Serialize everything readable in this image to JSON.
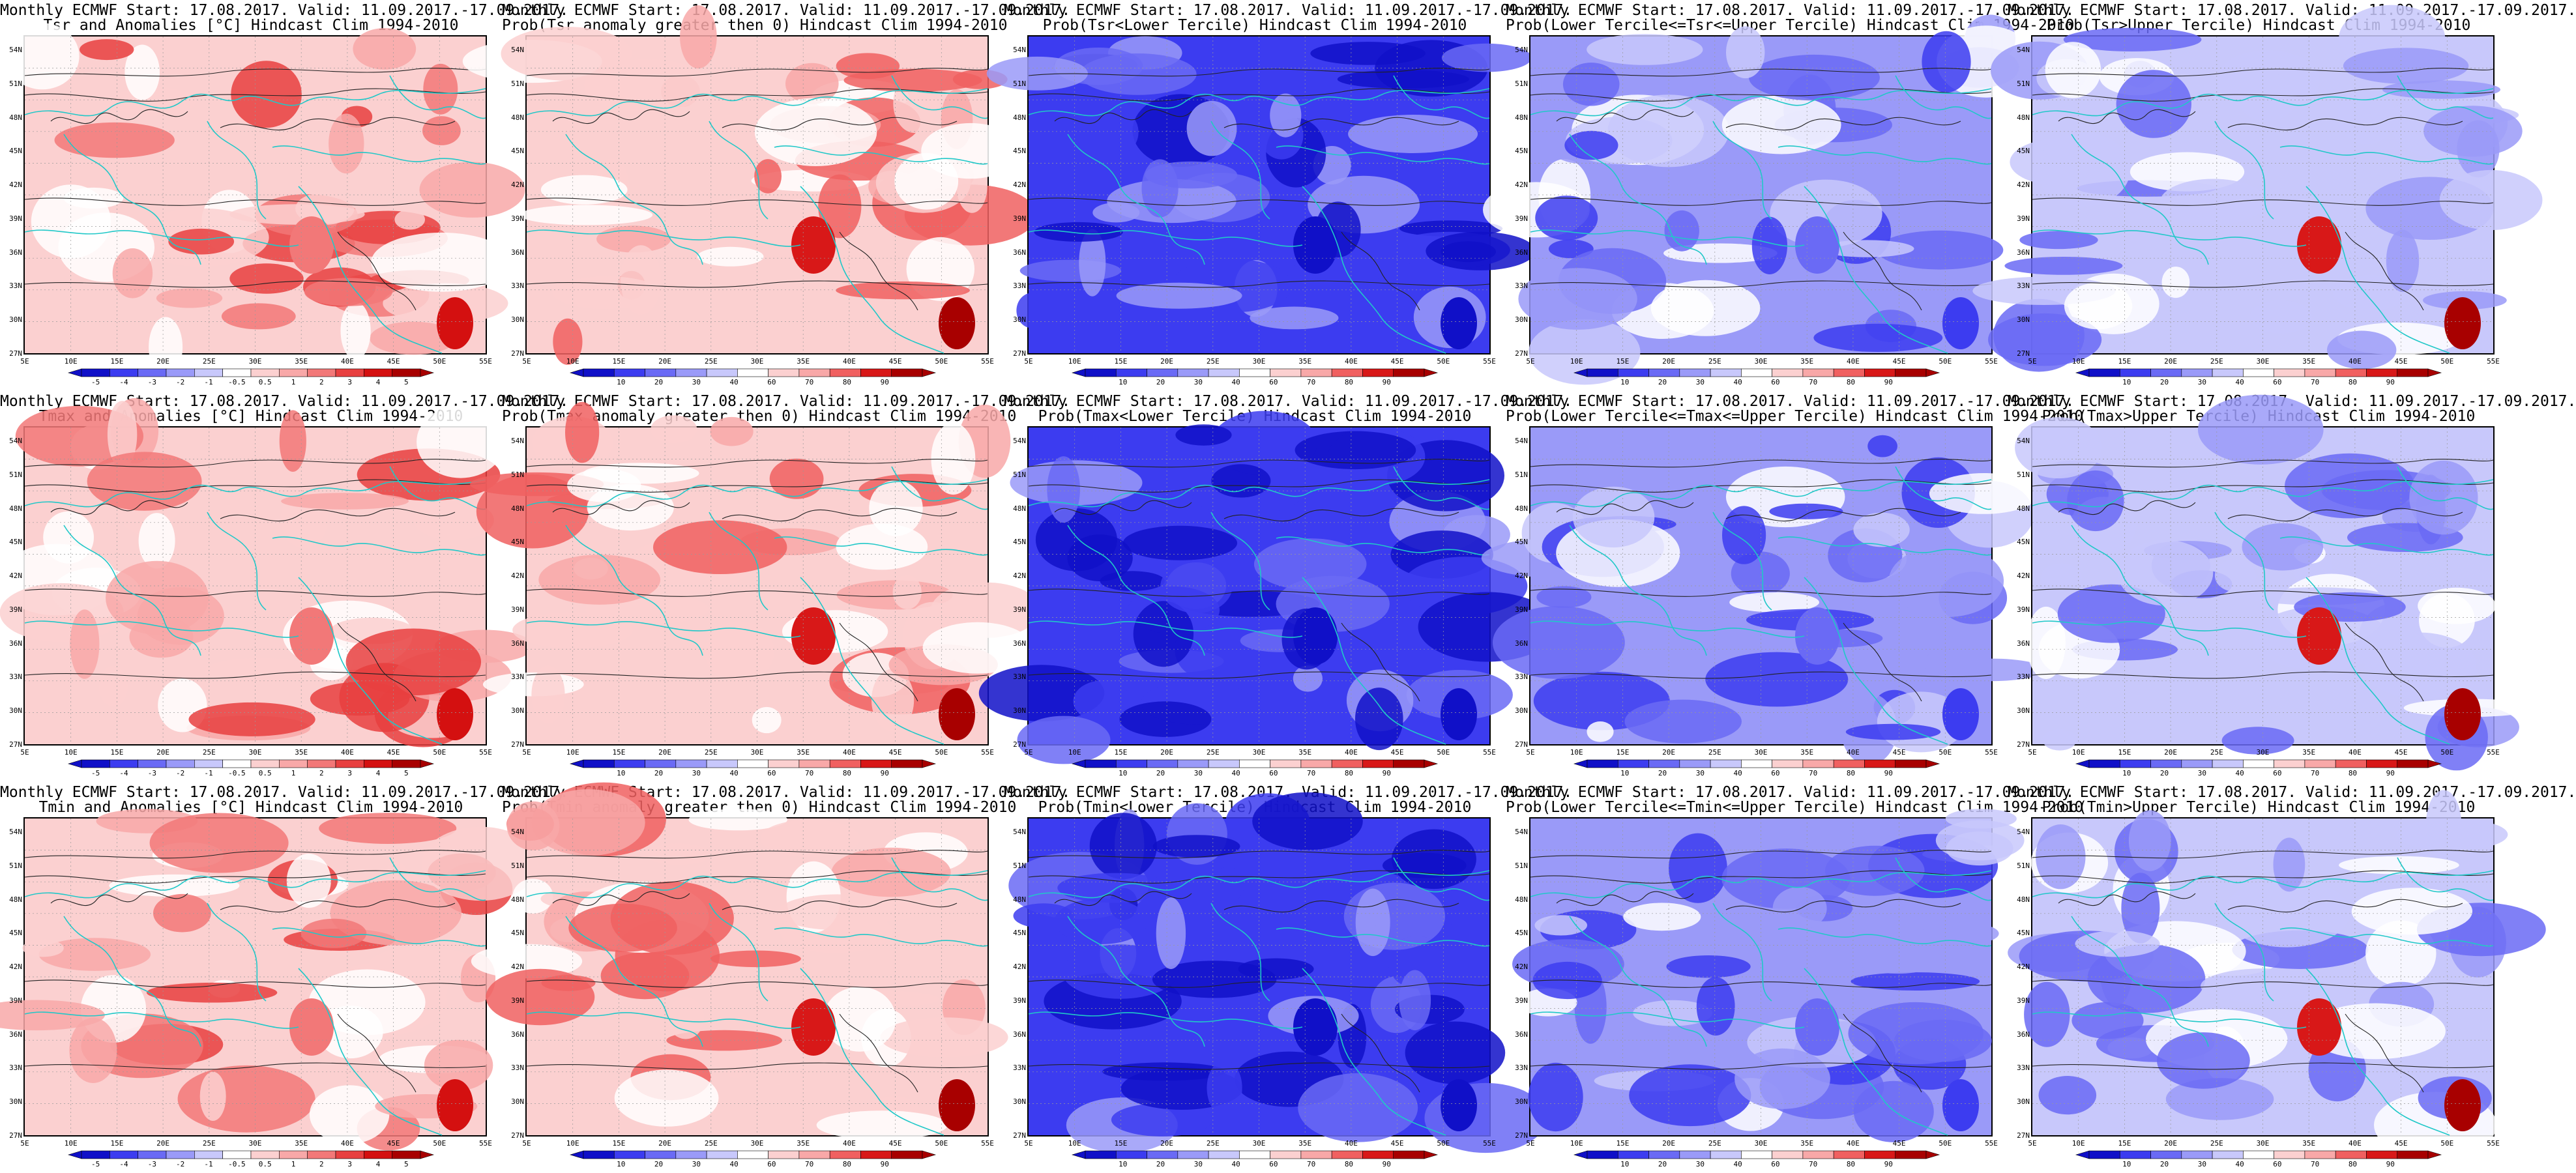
{
  "lat_labels": [
    "54N",
    "51N",
    "48N",
    "45N",
    "42N",
    "39N",
    "36N",
    "33N",
    "30N",
    "27N"
  ],
  "lon_labels": [
    "5E",
    "10E",
    "15E",
    "20E",
    "25E",
    "30E",
    "35E",
    "40E",
    "45E",
    "50E",
    "55E"
  ],
  "palettes": {
    "anomaly": [
      "#1010c8",
      "#3c3cf0",
      "#6a6af5",
      "#9a9af8",
      "#c8c8fb",
      "#ffffff",
      "#fbd0d0",
      "#f8a8a8",
      "#f27878",
      "#e84040",
      "#d41010",
      "#a80000"
    ],
    "prob_warm": [
      "#1010c8",
      "#3c3cf0",
      "#6a6af5",
      "#9a9af8",
      "#c8c8fb",
      "#ffffff",
      "#fbd0d0",
      "#f8a8a8",
      "#f06060",
      "#d81818",
      "#a80000"
    ],
    "prob_cold": [
      "#1010c8",
      "#3c3cf0",
      "#6a6af5",
      "#9a9af8",
      "#c8c8fb",
      "#ffffff",
      "#fbd0d0",
      "#f8a8a8",
      "#f06060",
      "#d81818",
      "#a80000"
    ]
  },
  "colorbars": {
    "anomaly_labels": [
      "-5",
      "-4",
      "-3",
      "-2",
      "-1",
      "-0.5",
      "0.5",
      "1",
      "2",
      "3",
      "4",
      "5"
    ],
    "prob_labels": [
      "10",
      "20",
      "30",
      "40",
      "60",
      "70",
      "80",
      "90"
    ]
  },
  "panels": [
    {
      "id": "tsr-anom",
      "line1": "Monthly ECMWF Start: 17.08.2017. Valid: 11.09.2017.-17.09.2017.",
      "line2": "Tsr and Anomalies [°C] Hindcast Clim 1994-2010",
      "field": "anomaly",
      "variant": "warm",
      "seed": 11
    },
    {
      "id": "tsr-prob-gt0",
      "line1": "Monthly ECMWF Start: 17.08.2017. Valid: 11.09.2017.-17.09.2017.",
      "line2": "Prob(Tsr anomaly greater then 0) Hindcast Clim 1994-2010",
      "field": "prob",
      "variant": "warm",
      "seed": 12
    },
    {
      "id": "tsr-prob-lower",
      "line1": "Monthly ECMWF Start: 17.08.2017. Valid: 11.09.2017.-17.09.2017.",
      "line2": "Prob(Tsr<Lower Tercile) Hindcast Clim 1994-2010",
      "field": "prob",
      "variant": "cold",
      "seed": 13
    },
    {
      "id": "tsr-prob-middle",
      "line1": "Monthly ECMWF Start: 17.08.2017. Valid: 11.09.2017.-17.09.2017.",
      "line2": "Prob(Lower Tercile<=Tsr<=Upper Tercile) Hindcast Clim 1994-2010",
      "field": "prob",
      "variant": "mid",
      "seed": 14
    },
    {
      "id": "tsr-prob-upper",
      "line1": "Monthly ECMWF Start: 17.08.2017. Valid: 11.09.2017.-17.09.2017.",
      "line2": "Prob(Tsr>Upper Tercile) Hindcast Clim 1994-2010",
      "field": "prob",
      "variant": "upper",
      "seed": 15
    },
    {
      "id": "tmax-anom",
      "line1": "Monthly ECMWF Start: 17.08.2017. Valid: 11.09.2017.-17.09.2017.",
      "line2": "Tmax and Anomalies [°C] Hindcast Clim 1994-2010",
      "field": "anomaly",
      "variant": "warm",
      "seed": 21
    },
    {
      "id": "tmax-prob-gt0",
      "line1": "Monthly ECMWF Start: 17.08.2017. Valid: 11.09.2017.-17.09.2017.",
      "line2": "Prob(Tmax anomaly greater then 0) Hindcast Clim 1994-2010",
      "field": "prob",
      "variant": "warm",
      "seed": 22
    },
    {
      "id": "tmax-prob-lower",
      "line1": "Monthly ECMWF Start: 17.08.2017. Valid: 11.09.2017.-17.09.2017.",
      "line2": "Prob(Tmax<Lower Tercile) Hindcast Clim 1994-2010",
      "field": "prob",
      "variant": "cold",
      "seed": 23
    },
    {
      "id": "tmax-prob-middle",
      "line1": "Monthly ECMWF Start: 17.08.2017. Valid: 11.09.2017.-17.09.2017.",
      "line2": "Prob(Lower Tercile<=Tmax<=Upper Tercile) Hindcast Clim 1994-2010",
      "field": "prob",
      "variant": "mid",
      "seed": 24
    },
    {
      "id": "tmax-prob-upper",
      "line1": "Monthly ECMWF Start: 17.08.2017. Valid: 11.09.2017.-17.09.2017.",
      "line2": "Prob(Tmax>Upper Tercile) Hindcast Clim 1994-2010",
      "field": "prob",
      "variant": "upper",
      "seed": 25
    },
    {
      "id": "tmin-anom",
      "line1": "Monthly ECMWF Start: 17.08.2017. Valid: 11.09.2017.-17.09.2017.",
      "line2": "Tmin and Anomalies [°C] Hindcast Clim 1994-2010",
      "field": "anomaly",
      "variant": "warm",
      "seed": 31
    },
    {
      "id": "tmin-prob-gt0",
      "line1": "Monthly ECMWF Start: 17.08.2017. Valid: 11.09.2017.-17.09.2017.",
      "line2": "Prob(Tmin anomaly greater then 0) Hindcast Clim 1994-2010",
      "field": "prob",
      "variant": "warm",
      "seed": 32
    },
    {
      "id": "tmin-prob-lower",
      "line1": "Monthly ECMWF Start: 17.08.2017. Valid: 11.09.2017.-17.09.2017.",
      "line2": "Prob(Tmin<Lower Tercile) Hindcast Clim 1994-2010",
      "field": "prob",
      "variant": "cold",
      "seed": 33
    },
    {
      "id": "tmin-prob-middle",
      "line1": "Monthly ECMWF Start: 17.08.2017. Valid: 11.09.2017.-17.09.2017.",
      "line2": "Prob(Lower Tercile<=Tmin<=Upper Tercile) Hindcast Clim 1994-2010",
      "field": "prob",
      "variant": "mid",
      "seed": 34
    },
    {
      "id": "tmin-prob-upper",
      "line1": "Monthly ECMWF Start: 17.08.2017. Valid: 11.09.2017.-17.09.2017.",
      "line2": "Prob(Tmin>Upper Tercile) Hindcast Clim 1994-2010",
      "field": "prob",
      "variant": "upper",
      "seed": 35
    }
  ]
}
